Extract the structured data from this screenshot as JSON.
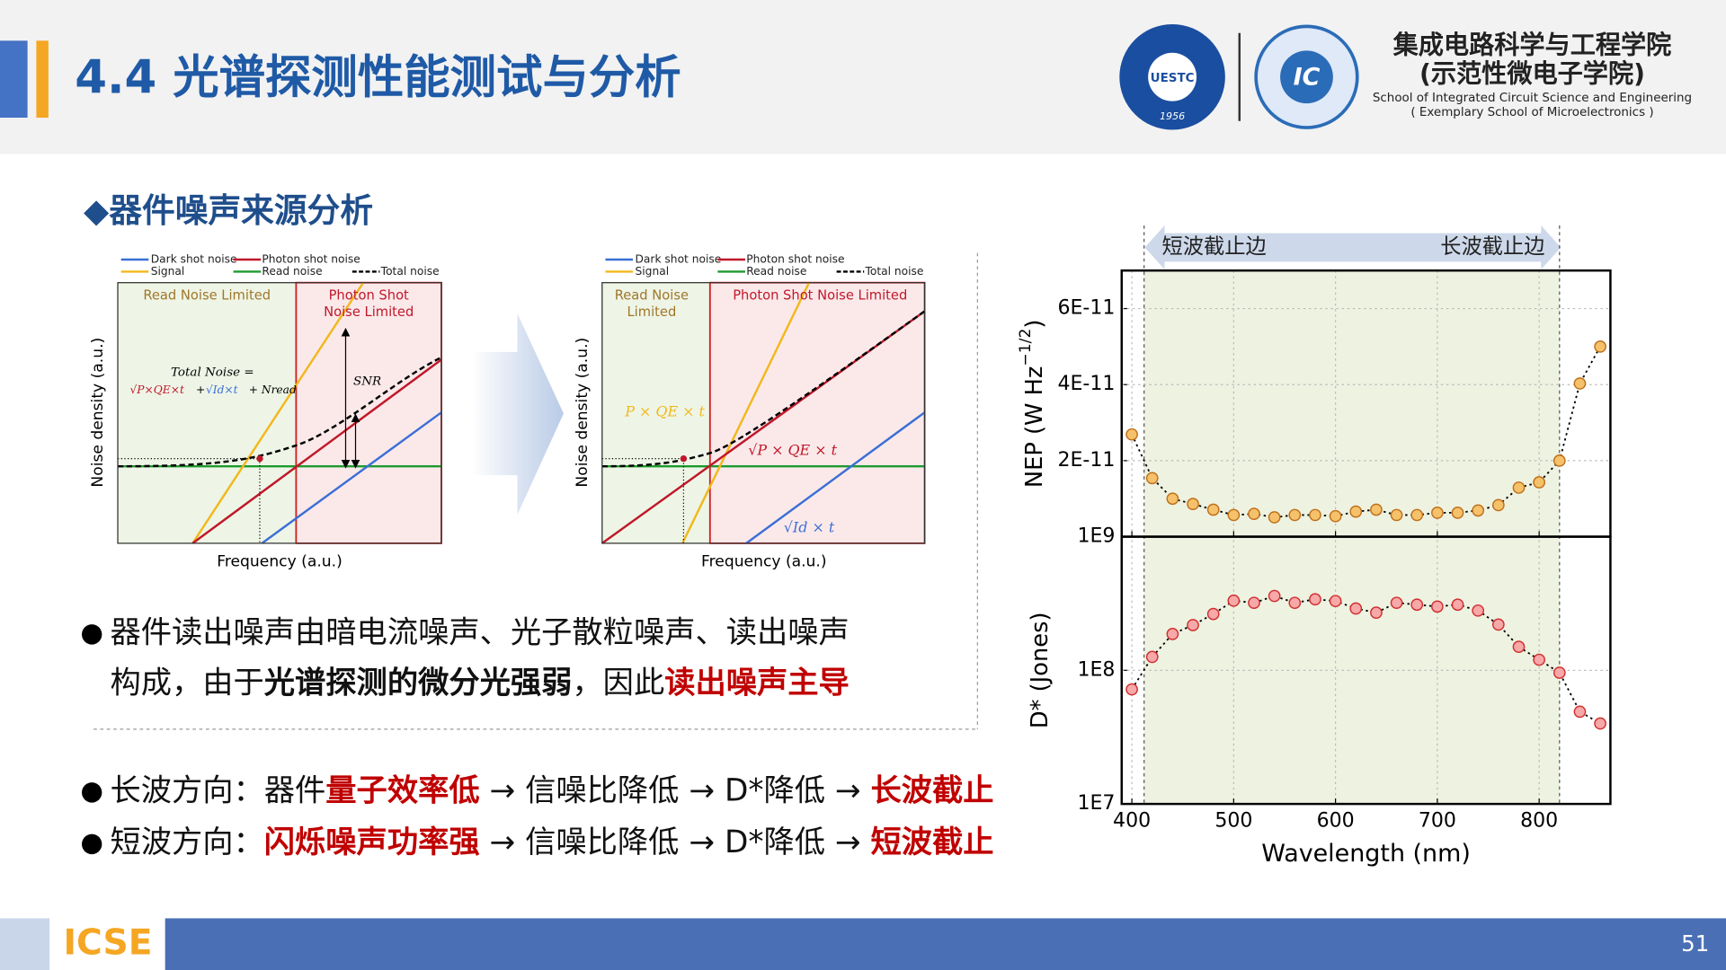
{
  "header": {
    "title": "4.4 光谱探测性能测试与分析",
    "school_cn": "集成电路科学与工程学院",
    "school_cn_sub": "(示范性微电子学院)",
    "school_en": "School of Integrated Circuit Science and Engineering",
    "school_en_sub": "( Exemplary School of Microelectronics )",
    "logo_uestc": "UESTC",
    "logo_year": "1956",
    "logo_ic": "IC"
  },
  "section": "◆器件噪声来源分析",
  "diagrams": [
    {
      "legend": [
        "Dark shot noise",
        "Photon shot noise",
        "Signal",
        "Read noise",
        "Total noise"
      ],
      "regions": [
        [
          "Read Noise Limited"
        ],
        [
          "Photon Shot",
          "Noise Limited"
        ]
      ],
      "x_label": "Frequency (a.u.)",
      "y_label": "Noise density (a.u.)",
      "annotations": [
        "Total Noise =",
        "√P×QE×t",
        "+",
        "√Id×t",
        "+ Nread",
        "SNR"
      ]
    },
    {
      "legend": [
        "Dark shot noise",
        "Photon shot noise",
        "Signal",
        "Read noise",
        "Total noise"
      ],
      "regions": [
        [
          "Read Noise",
          "Limited"
        ],
        [
          "Photon Shot Noise Limited"
        ]
      ],
      "x_label": "Frequency (a.u.)",
      "y_label": "Noise density (a.u.)",
      "annotations": [
        "P × QE × t",
        "√P × QE × t",
        "√Id × t"
      ]
    }
  ],
  "bullets": [
    {
      "marker": "●",
      "lines": [
        [
          {
            "text": "器件读出噪声由暗电流噪声、光子散粒噪声、读出噪声",
            "style": "normal"
          }
        ],
        [
          {
            "text": "构成，由于",
            "style": "normal"
          },
          {
            "text": "光谱探测的微分光强弱",
            "style": "bold"
          },
          {
            "text": "，因此",
            "style": "normal"
          },
          {
            "text": "读出噪声主导",
            "style": "red"
          }
        ]
      ]
    },
    {
      "marker": "●",
      "lines": [
        [
          {
            "text": "长波方向：器件",
            "style": "normal"
          },
          {
            "text": "量子效率低",
            "style": "red"
          },
          {
            "text": " → 信噪比降低 → D*降低 → ",
            "style": "normal"
          },
          {
            "text": "长波截止",
            "style": "red"
          }
        ]
      ]
    },
    {
      "marker": "●",
      "lines": [
        [
          {
            "text": "短波方向：",
            "style": "normal"
          },
          {
            "text": "闪烁噪声功率强",
            "style": "red"
          },
          {
            "text": " → 信噪比降低 → D*降低 → ",
            "style": "normal"
          },
          {
            "text": "短波截止",
            "style": "red"
          }
        ]
      ]
    }
  ],
  "chart_data": {
    "type": "line",
    "x_label": "Wavelength (nm)",
    "x": [
      400,
      420,
      440,
      460,
      480,
      500,
      520,
      540,
      560,
      580,
      600,
      620,
      640,
      660,
      680,
      700,
      720,
      740,
      760,
      780,
      800,
      820,
      840,
      860
    ],
    "xlim": [
      390,
      870
    ],
    "xticks": [
      400,
      500,
      600,
      700,
      800
    ],
    "shaded_range": [
      412,
      820
    ],
    "annotations": [
      "短波截止边",
      "长波截止边"
    ],
    "grid": true,
    "panels": [
      {
        "y_label": [
          "NEP (W Hz",
          "−1/2",
          ")"
        ],
        "log": false,
        "ylim": [
          0,
          7e-11
        ],
        "yticks": [
          {
            "value": 2e-11,
            "label": "2E-11"
          },
          {
            "value": 4e-11,
            "label": "4E-11"
          },
          {
            "value": 6e-11,
            "label": "6E-11"
          }
        ],
        "color": "#f5c26b",
        "edge": "#c0701a",
        "values": [
          2.69e-11,
          1.54e-11,
          1e-11,
          8.6e-12,
          7.1e-12,
          5.7e-12,
          6e-12,
          5.1e-12,
          5.7e-12,
          5.7e-12,
          5.4e-12,
          6.6e-12,
          7.1e-12,
          5.7e-12,
          5.7e-12,
          6.3e-12,
          6.3e-12,
          6.9e-12,
          8.3e-12,
          1.29e-11,
          1.43e-11,
          2e-11,
          4.03e-11,
          5e-11
        ]
      },
      {
        "y_label": [
          "D* (Jones)"
        ],
        "log": true,
        "ylim": [
          10000000.0,
          1000000000.0
        ],
        "yticks": [
          {
            "value": 10000000.0,
            "label": "1E7"
          },
          {
            "value": 100000000.0,
            "label": "1E8"
          },
          {
            "value": 1000000000.0,
            "label": "1E9"
          }
        ],
        "color": "#f7a8a8",
        "edge": "#d03030",
        "values": [
          72000000.0,
          126000000.0,
          187000000.0,
          218000000.0,
          264000000.0,
          332000000.0,
          320000000.0,
          360000000.0,
          320000000.0,
          340000000.0,
          330000000.0,
          290000000.0,
          270000000.0,
          320000000.0,
          310000000.0,
          300000000.0,
          310000000.0,
          280000000.0,
          220000000.0,
          150000000.0,
          120000000.0,
          96000000.0,
          49000000.0,
          40000000.0
        ]
      }
    ]
  },
  "footer": {
    "logo": "ICSE",
    "page": "51"
  }
}
